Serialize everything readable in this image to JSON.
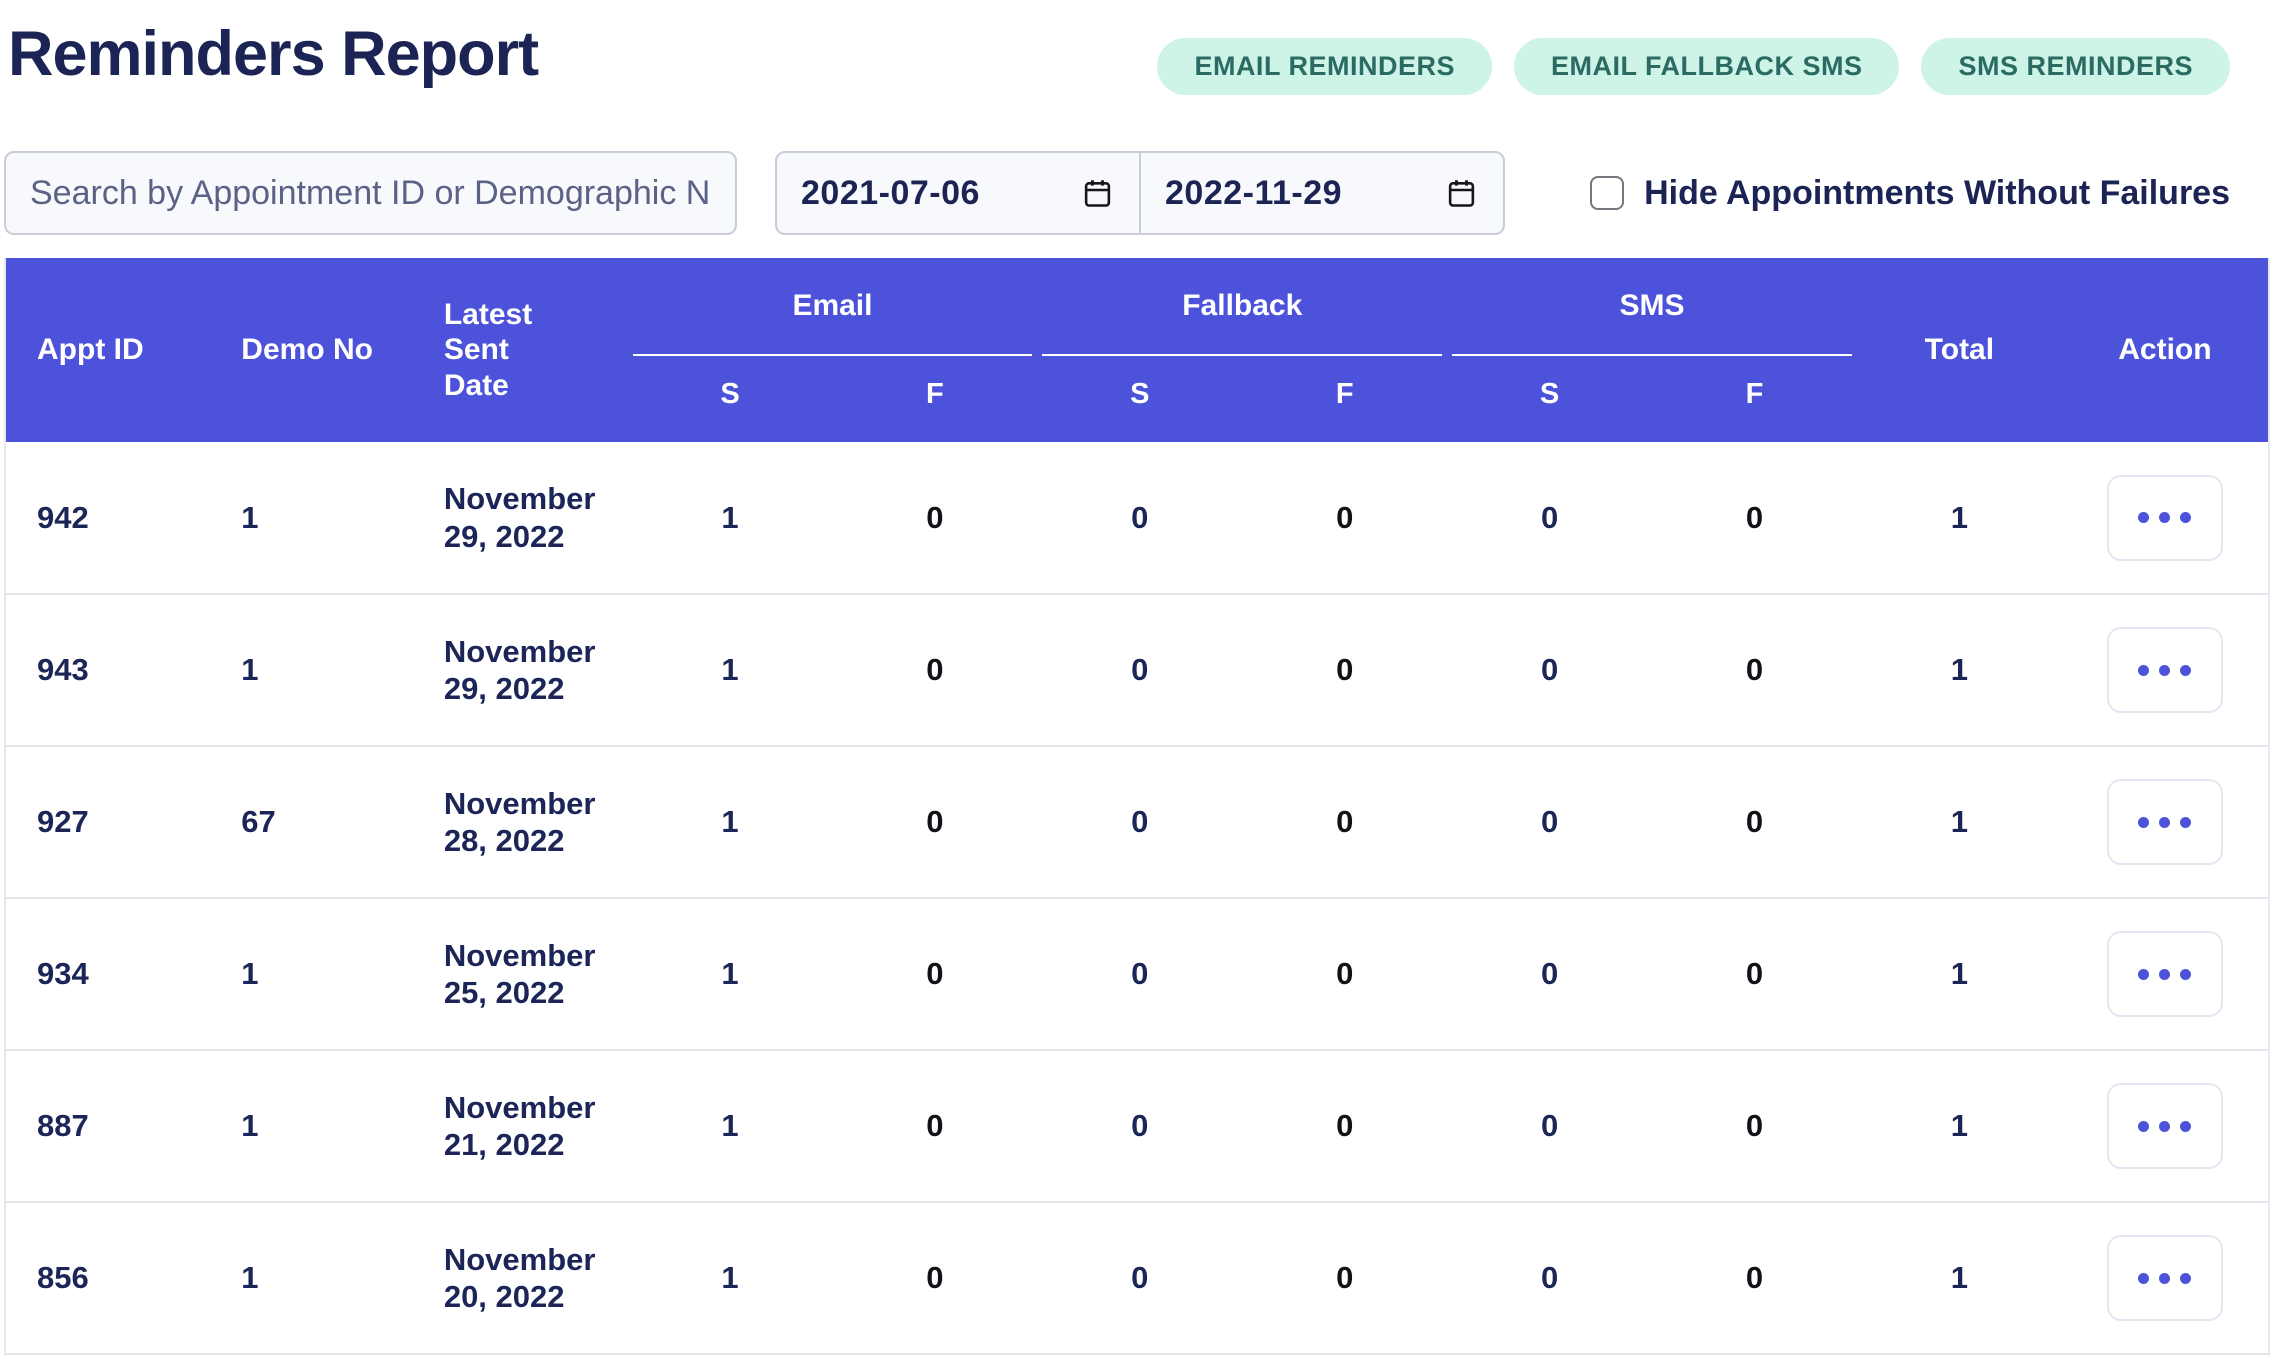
{
  "page": {
    "title": "Reminders Report"
  },
  "buttons": [
    {
      "label": "EMAIL REMINDERS"
    },
    {
      "label": "EMAIL FALLBACK SMS"
    },
    {
      "label": "SMS REMINDERS"
    }
  ],
  "filters": {
    "search_placeholder": "Search by Appointment ID or Demographic Nun",
    "date_from": "2021-07-06",
    "date_to": "2022-11-29",
    "hide_checkbox_label": "Hide Appointments Without Failures",
    "hide_checkbox_checked": false
  },
  "icons": {
    "date_field": "calendar-icon",
    "row_action": "ellipsis-icon"
  },
  "colors": {
    "header_purple": "#4c52da",
    "pill_background": "#cdf4e6",
    "pill_text": "#2b6b63",
    "navy_text": "#1c2557",
    "failure_text": "#101218",
    "row_border": "#e3e6ed",
    "input_background": "#f8f9fd",
    "input_border": "#c9cdd9"
  },
  "table": {
    "headers": {
      "appt_id": "Appt ID",
      "demo_no": "Demo No",
      "latest_sent_date": "Latest Sent Date",
      "email": "Email",
      "fallback": "Fallback",
      "sms": "SMS",
      "s": "S",
      "f": "F",
      "total": "Total",
      "action": "Action"
    },
    "rows": [
      {
        "appt_id": "942",
        "demo_no": "1",
        "latest_sent_date": "November 29, 2022",
        "email_s": "1",
        "email_f": "0",
        "fallback_s": "0",
        "fallback_f": "0",
        "sms_s": "0",
        "sms_f": "0",
        "total": "1"
      },
      {
        "appt_id": "943",
        "demo_no": "1",
        "latest_sent_date": "November 29, 2022",
        "email_s": "1",
        "email_f": "0",
        "fallback_s": "0",
        "fallback_f": "0",
        "sms_s": "0",
        "sms_f": "0",
        "total": "1"
      },
      {
        "appt_id": "927",
        "demo_no": "67",
        "latest_sent_date": "November 28, 2022",
        "email_s": "1",
        "email_f": "0",
        "fallback_s": "0",
        "fallback_f": "0",
        "sms_s": "0",
        "sms_f": "0",
        "total": "1"
      },
      {
        "appt_id": "934",
        "demo_no": "1",
        "latest_sent_date": "November 25, 2022",
        "email_s": "1",
        "email_f": "0",
        "fallback_s": "0",
        "fallback_f": "0",
        "sms_s": "0",
        "sms_f": "0",
        "total": "1"
      },
      {
        "appt_id": "887",
        "demo_no": "1",
        "latest_sent_date": "November 21, 2022",
        "email_s": "1",
        "email_f": "0",
        "fallback_s": "0",
        "fallback_f": "0",
        "sms_s": "0",
        "sms_f": "0",
        "total": "1"
      },
      {
        "appt_id": "856",
        "demo_no": "1",
        "latest_sent_date": "November 20, 2022",
        "email_s": "1",
        "email_f": "0",
        "fallback_s": "0",
        "fallback_f": "0",
        "sms_s": "0",
        "sms_f": "0",
        "total": "1"
      }
    ]
  }
}
